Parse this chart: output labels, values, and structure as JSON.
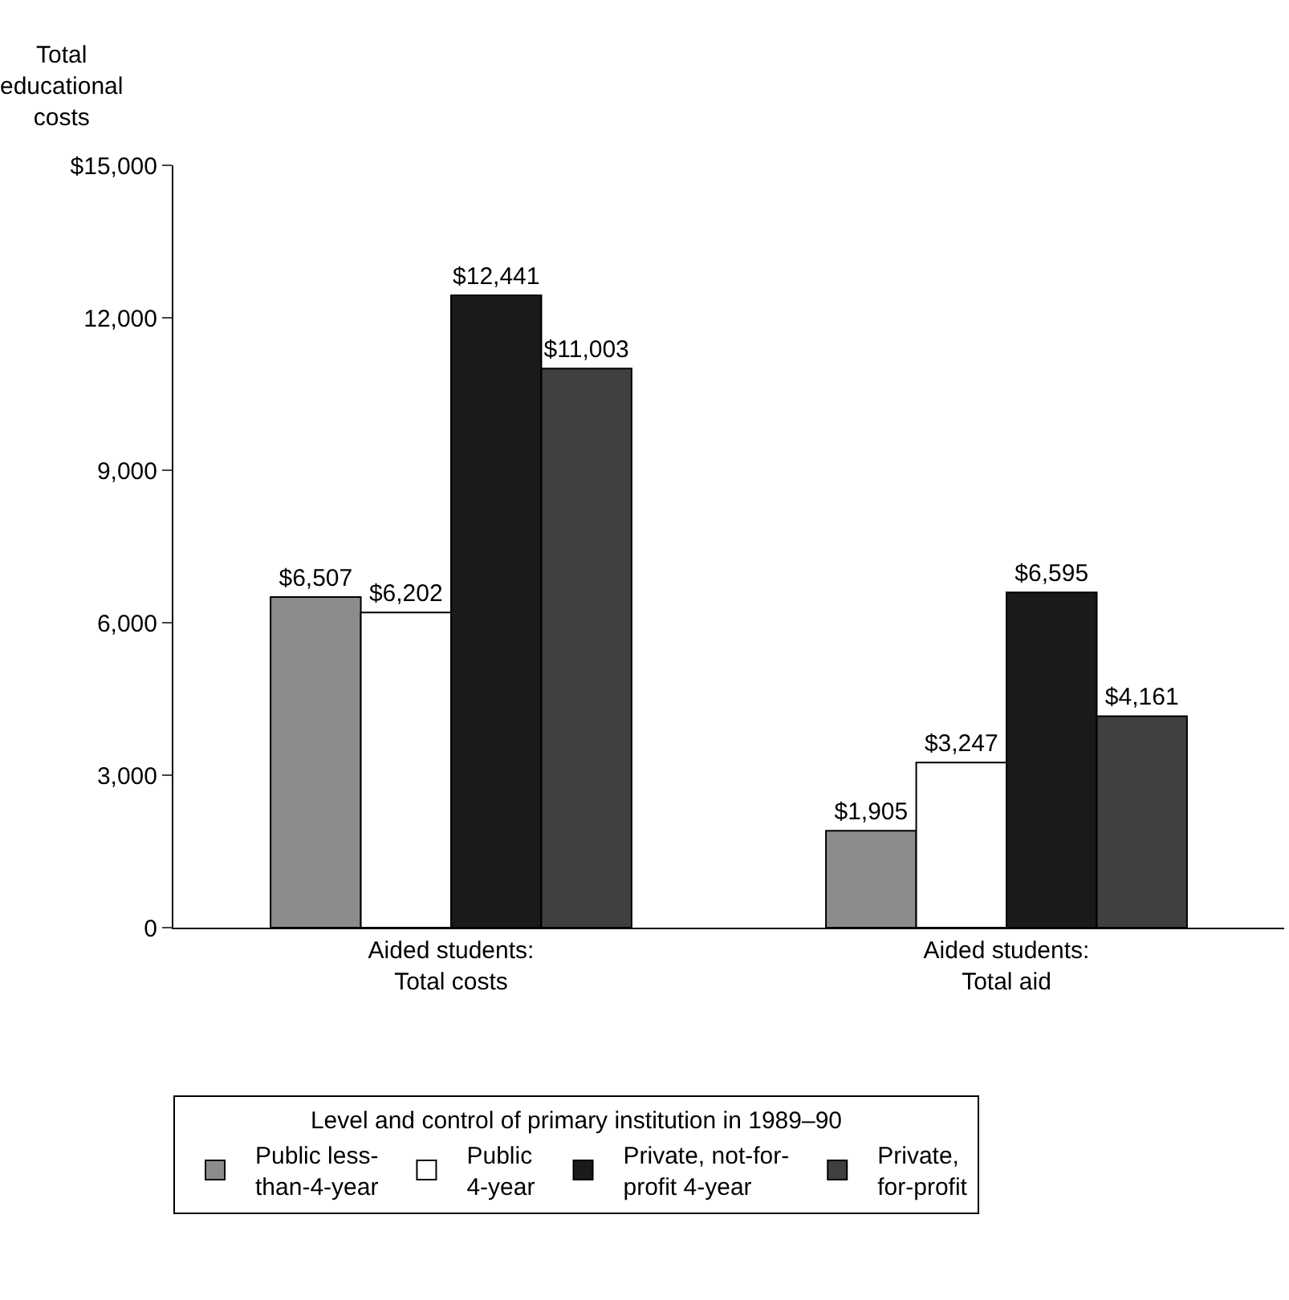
{
  "chart_data": {
    "type": "bar",
    "ylabel": "Total\neducational\ncosts",
    "legend_title": "Level and control of primary institution in 1989–90",
    "categories": [
      "Aided students:\nTotal costs",
      "Aided students:\nTotal aid"
    ],
    "series": [
      {
        "name": "Public less-\nthan-4-year",
        "color": "#8c8c8c",
        "values": [
          6507,
          1905
        ],
        "value_labels": [
          "$6,507",
          "$1,905"
        ]
      },
      {
        "name": "Public\n4-year",
        "color": "#ffffff",
        "values": [
          6202,
          3247
        ],
        "value_labels": [
          "$6,202",
          "$3,247"
        ]
      },
      {
        "name": "Private, not-for-\nprofit 4-year",
        "color": "#1a1a1a",
        "values": [
          12441,
          6595
        ],
        "value_labels": [
          "$12,441",
          "$6,595"
        ]
      },
      {
        "name": "Private,\nfor-profit",
        "color": "#404040",
        "values": [
          11003,
          4161
        ],
        "value_labels": [
          "$11,003",
          "$4,161"
        ]
      }
    ],
    "ylim": [
      0,
      15000
    ],
    "yticks": [
      0,
      {
        "value": 3000,
        "label": "3,000"
      },
      {
        "value": 6000,
        "label": "6,000"
      },
      {
        "value": 9000,
        "label": "9,000"
      },
      {
        "value": 12000,
        "label": "12,000"
      },
      {
        "value": 15000,
        "label": "$15,000"
      }
    ],
    "grid": false,
    "legend": "bottom"
  }
}
